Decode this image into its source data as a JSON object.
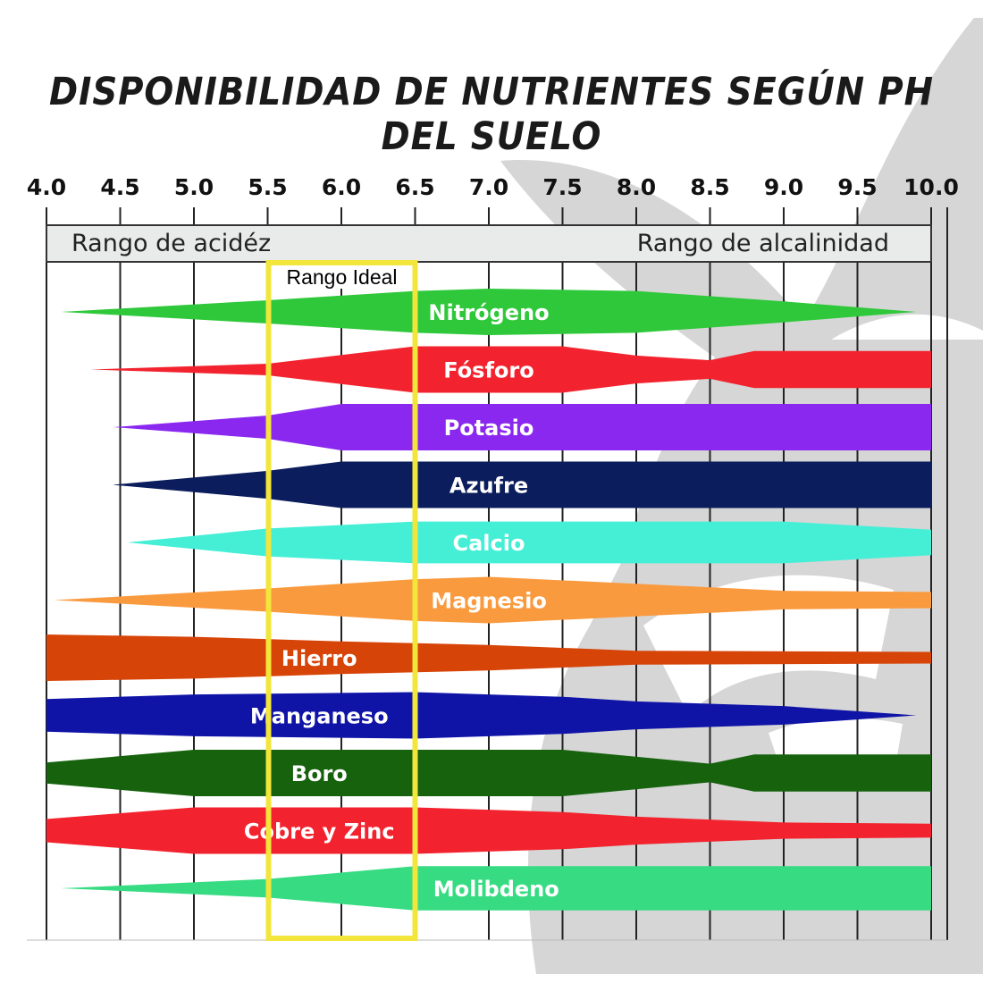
{
  "title": "DISPONIBILIDAD DE NUTRIENTES SEGÚN PH DEL SUELO",
  "colors": {
    "grid": "#222222",
    "ideal_box": "#f2e53b",
    "range_bar": "#e9ebea",
    "watermark": "#d4d4d4"
  },
  "chart_data": {
    "type": "area",
    "x_ticks": [
      "4.0",
      "4.5",
      "5.0",
      "5.5",
      "6.0",
      "6.5",
      "7.0",
      "7.5",
      "8.0",
      "8.5",
      "9.0",
      "9.5",
      "10.0"
    ],
    "xlim": [
      4.0,
      10.0
    ],
    "grid": true,
    "range_labels": {
      "acid": "Rango de acidéz",
      "alkaline": "Rango de alcalinidad"
    },
    "ideal_range": {
      "label": "Rango Ideal",
      "from": 5.5,
      "to": 6.5
    },
    "value_scale": "relative availability 0–1",
    "series": [
      {
        "name": "Nitrógeno",
        "color": "#2fc83a",
        "points": [
          [
            4.1,
            0
          ],
          [
            5.5,
            0.5
          ],
          [
            6.5,
            0.9
          ],
          [
            7.0,
            1.0
          ],
          [
            8.0,
            0.9
          ],
          [
            9.0,
            0.45
          ],
          [
            9.9,
            0
          ]
        ]
      },
      {
        "name": "Fósforo",
        "color": "#f2232e",
        "points": [
          [
            4.3,
            0
          ],
          [
            5.5,
            0.25
          ],
          [
            6.5,
            1.0
          ],
          [
            7.5,
            1.0
          ],
          [
            8.0,
            0.6
          ],
          [
            8.5,
            0.4
          ],
          [
            8.8,
            0.8
          ],
          [
            10.0,
            0.8
          ]
        ]
      },
      {
        "name": "Potasio",
        "color": "#8a28f0",
        "points": [
          [
            4.45,
            0
          ],
          [
            5.5,
            0.5
          ],
          [
            6.0,
            1.0
          ],
          [
            10.0,
            1.0
          ]
        ]
      },
      {
        "name": "Azufre",
        "color": "#0b1d5c",
        "points": [
          [
            4.45,
            0
          ],
          [
            5.5,
            0.6
          ],
          [
            6.0,
            1.0
          ],
          [
            10.0,
            1.0
          ]
        ]
      },
      {
        "name": "Calcio",
        "color": "#45efd6",
        "points": [
          [
            4.55,
            0
          ],
          [
            5.5,
            0.6
          ],
          [
            6.5,
            0.9
          ],
          [
            9.0,
            0.9
          ],
          [
            10.0,
            0.55
          ]
        ]
      },
      {
        "name": "Magnesio",
        "color": "#fa9a3e",
        "points": [
          [
            4.05,
            0
          ],
          [
            5.5,
            0.5
          ],
          [
            6.5,
            0.9
          ],
          [
            7.0,
            1.0
          ],
          [
            8.0,
            0.7
          ],
          [
            9.0,
            0.4
          ],
          [
            10.0,
            0.35
          ]
        ]
      },
      {
        "name": "Hierro",
        "color": "#d64408",
        "points": [
          [
            4.0,
            1.0
          ],
          [
            5.0,
            0.9
          ],
          [
            6.0,
            0.7
          ],
          [
            7.0,
            0.55
          ],
          [
            8.0,
            0.3
          ],
          [
            10.0,
            0.25
          ]
        ]
      },
      {
        "name": "Manganeso",
        "color": "#1014a6",
        "points": [
          [
            4.0,
            0.7
          ],
          [
            5.0,
            0.9
          ],
          [
            6.5,
            1.0
          ],
          [
            7.5,
            0.8
          ],
          [
            8.0,
            0.6
          ],
          [
            9.0,
            0.4
          ],
          [
            9.9,
            0
          ]
        ]
      },
      {
        "name": "Boro",
        "color": "#16620d",
        "points": [
          [
            4.0,
            0.45
          ],
          [
            5.0,
            1.0
          ],
          [
            7.5,
            1.0
          ],
          [
            8.5,
            0.4
          ],
          [
            8.8,
            0.8
          ],
          [
            10.0,
            0.8
          ]
        ]
      },
      {
        "name": "Cobre y Zinc",
        "color": "#f2232e",
        "points": [
          [
            4.0,
            0.5
          ],
          [
            5.0,
            1.0
          ],
          [
            6.5,
            1.0
          ],
          [
            7.5,
            0.8
          ],
          [
            8.0,
            0.6
          ],
          [
            9.0,
            0.35
          ],
          [
            10.0,
            0.3
          ]
        ]
      },
      {
        "name": "Molibdeno",
        "color": "#37dc82",
        "points": [
          [
            4.1,
            0
          ],
          [
            5.5,
            0.4
          ],
          [
            6.5,
            0.95
          ],
          [
            10.0,
            0.95
          ]
        ]
      }
    ]
  }
}
